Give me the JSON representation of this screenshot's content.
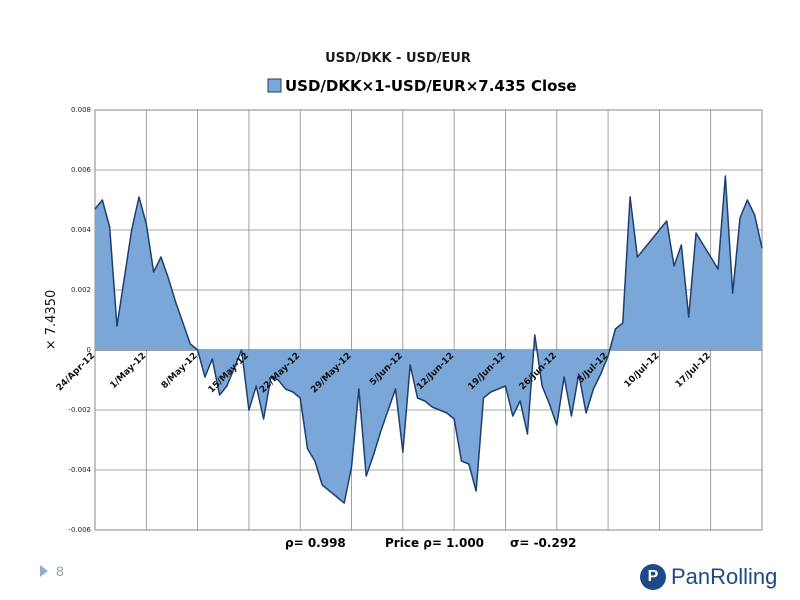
{
  "page": {
    "number": "8"
  },
  "brand": {
    "name": "PanRolling",
    "mark": "P"
  },
  "chart_data": {
    "type": "area",
    "title": "USD/DKK - USD/EUR",
    "legend": "USD/DKK×1-USD/EUR×7.435 Close",
    "ylabel": "× 7.4350",
    "ylim": [
      -0.006,
      0.008
    ],
    "yticks": [
      -0.006,
      -0.004,
      -0.002,
      0,
      0.002,
      0.004,
      0.006,
      0.008
    ],
    "ytick_labels": [
      "-0.006",
      "-0.004",
      "-0.002",
      "0",
      "0.002",
      "0.004",
      "0.006",
      "0.008"
    ],
    "x_tick_labels": [
      "24/Apr-12",
      "1/May-12",
      "8/May-12",
      "15/May-12",
      "22/May-12",
      "29/May-12",
      "5/Jun-12",
      "12/Jun-12",
      "19/Jun-12",
      "26/Jun-12",
      "3/Jul-12",
      "10/Jul-12",
      "17/Jul-12"
    ],
    "x_tick_index": [
      0,
      7,
      14,
      21,
      28,
      35,
      42,
      49,
      56,
      63,
      70,
      77,
      84
    ],
    "x_max": 91,
    "series": [
      {
        "name": "USD/DKK×1-USD/EUR×7.435 Close",
        "color": "#7aa6d8",
        "line_color": "#1f3f6e",
        "values": [
          0.0047,
          0.005,
          0.0041,
          0.0008,
          0.0024,
          0.004,
          0.0051,
          0.0042,
          0.0026,
          0.0031,
          0.0024,
          0.0016,
          0.0009,
          0.0002,
          0.0,
          -0.0009,
          -0.0003,
          -0.0015,
          -0.0012,
          -0.0006,
          0.0,
          -0.002,
          -0.0012,
          -0.0023,
          -0.0009,
          -0.001,
          -0.0013,
          -0.0014,
          -0.0016,
          -0.0033,
          -0.0037,
          -0.0045,
          -0.0047,
          -0.0049,
          -0.0051,
          -0.0039,
          -0.0013,
          -0.0042,
          -0.0035,
          -0.0027,
          -0.002,
          -0.0013,
          -0.0034,
          -0.0005,
          -0.0016,
          -0.0017,
          -0.0019,
          -0.002,
          -0.0021,
          -0.0023,
          -0.0037,
          -0.0038,
          -0.0047,
          -0.0016,
          -0.0014,
          -0.0013,
          -0.0012,
          -0.0022,
          -0.0017,
          -0.0028,
          0.0005,
          -0.0012,
          -0.0018,
          -0.0025,
          -0.0009,
          -0.0022,
          -0.0008,
          -0.0021,
          -0.0013,
          -0.0008,
          -0.0002,
          0.0007,
          0.0009,
          0.0051,
          0.0031,
          0.0034,
          0.0037,
          0.004,
          0.0043,
          0.0028,
          0.0035,
          0.0011,
          0.0039,
          0.0035,
          0.0031,
          0.0027,
          0.0058,
          0.0019,
          0.0044,
          0.005,
          0.0045,
          0.0034
        ]
      }
    ],
    "stats": {
      "rho": "ρ= 0.998",
      "price_rho": "Price ρ= 1.000",
      "sigma": "σ= -0.292"
    },
    "grid": true
  }
}
